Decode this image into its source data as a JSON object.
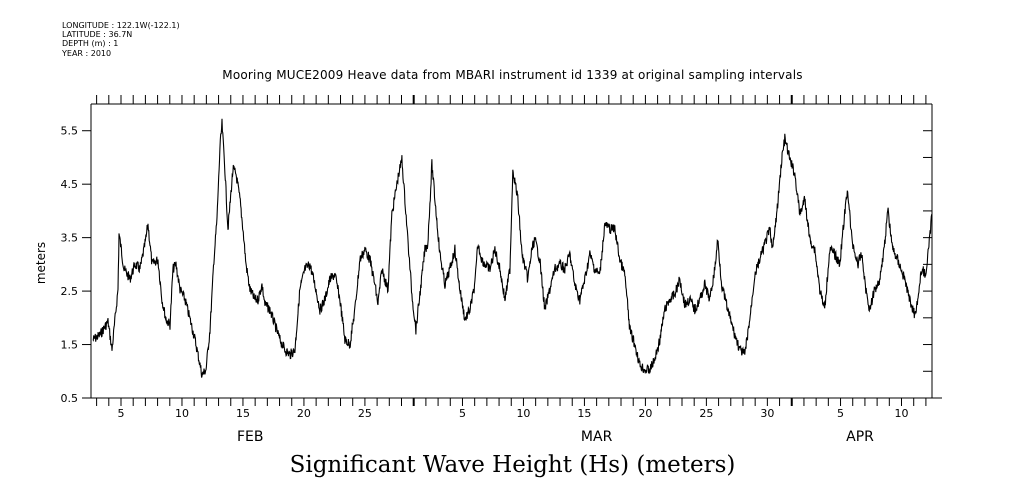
{
  "header": {
    "meta_lines": [
      "LONGITUDE : 122.1W(-122.1)",
      "LATITUDE : 36.7N",
      "DEPTH (m) : 1",
      "YEAR : 2010"
    ]
  },
  "chart_data": {
    "type": "line",
    "title": "Mooring MUCE2009 Heave data from MBARI instrument id 1339 at original sampling intervals",
    "bottom_title": "Significant Wave Height (Hs) (meters)",
    "xlabel": "",
    "ylabel": "meters",
    "x_units": "day index (Feb 1 = 1, Mar 1 = 29, Apr 1 = 60), year 2010",
    "xlim": [
      2.54,
      71.5
    ],
    "ylim": [
      0.5,
      6.0
    ],
    "yticks": [
      0.5,
      1.5,
      2.5,
      3.5,
      4.5,
      5.5
    ],
    "ytick_labels": [
      "0.5",
      "1.5",
      "2.5",
      "3.5",
      "4.5",
      "5.5"
    ],
    "xtick_labels": [
      {
        "day": 5,
        "label": "5"
      },
      {
        "day": 10,
        "label": "10"
      },
      {
        "day": 15,
        "label": "15"
      },
      {
        "day": 20,
        "label": "20"
      },
      {
        "day": 25,
        "label": "25"
      },
      {
        "day": 33,
        "label": "5"
      },
      {
        "day": 38,
        "label": "10"
      },
      {
        "day": 43,
        "label": "15"
      },
      {
        "day": 48,
        "label": "20"
      },
      {
        "day": 53,
        "label": "25"
      },
      {
        "day": 58,
        "label": "30"
      },
      {
        "day": 64,
        "label": "5"
      },
      {
        "day": 69,
        "label": "10"
      }
    ],
    "month_labels": [
      {
        "center_day": 15.6,
        "label": "FEB"
      },
      {
        "center_day": 44.0,
        "label": "MAR"
      },
      {
        "center_day": 65.6,
        "label": "APR"
      }
    ],
    "month_starts": [
      29,
      60
    ],
    "grid": false,
    "series": [
      {
        "name": "Hs",
        "color": "#000000",
        "x": [
          2.7,
          3.28,
          3.93,
          4.26,
          4.75,
          4.84,
          5.25,
          5.74,
          6.15,
          6.56,
          6.97,
          7.21,
          7.54,
          8.03,
          8.36,
          8.69,
          9.02,
          9.26,
          9.51,
          9.84,
          10.25,
          10.66,
          11.07,
          11.48,
          11.64,
          11.97,
          12.3,
          12.62,
          12.87,
          13.11,
          13.28,
          13.52,
          13.77,
          14.18,
          14.43,
          14.75,
          15.0,
          15.25,
          15.57,
          15.98,
          16.23,
          16.56,
          16.8,
          17.21,
          17.62,
          18.03,
          18.44,
          18.85,
          19.26,
          19.67,
          20.08,
          20.49,
          20.9,
          21.31,
          21.72,
          22.13,
          22.54,
          22.95,
          23.36,
          23.77,
          24.18,
          24.59,
          25.0,
          25.41,
          25.82,
          26.07,
          26.39,
          26.89,
          27.21,
          27.7,
          28.03,
          28.28,
          28.52,
          28.85,
          29.18,
          29.51,
          29.92,
          30.16,
          30.49,
          30.74,
          31.15,
          31.56,
          31.97,
          32.38,
          32.79,
          33.2,
          33.61,
          34.02,
          34.26,
          34.59,
          34.84,
          35.25,
          35.66,
          36.07,
          36.48,
          36.89,
          37.13,
          37.54,
          37.87,
          38.36,
          38.69,
          38.93,
          39.34,
          39.75,
          40.16,
          40.57,
          40.98,
          41.39,
          41.8,
          42.21,
          42.62,
          43.03,
          43.44,
          43.85,
          44.26,
          44.67,
          45.08,
          45.49,
          45.9,
          46.31,
          46.72,
          47.13,
          47.54,
          47.95,
          48.36,
          48.77,
          49.18,
          49.59,
          50.0,
          50.41,
          50.82,
          51.23,
          51.64,
          52.05,
          52.46,
          52.87,
          53.28,
          53.69,
          53.93,
          54.26,
          54.75,
          55.33,
          55.74,
          56.15,
          56.56,
          56.97,
          57.38,
          57.79,
          58.2,
          58.44,
          58.85,
          59.18,
          59.43,
          59.84,
          60.25,
          60.66,
          61.07,
          61.48,
          61.89,
          62.3,
          62.7,
          63.11,
          63.52,
          63.93,
          64.34,
          64.59,
          64.92,
          65.41,
          65.74,
          66.07,
          66.39,
          66.8,
          67.21,
          67.62,
          67.87,
          68.28,
          68.69,
          69.26,
          69.67,
          70.08,
          70.33,
          70.66,
          70.98,
          71.31,
          71.48
        ],
        "y": [
          1.59,
          1.68,
          1.93,
          1.4,
          2.53,
          3.57,
          2.91,
          2.73,
          3.0,
          2.91,
          3.38,
          3.75,
          3.0,
          3.09,
          2.34,
          1.97,
          1.87,
          2.91,
          3.0,
          2.53,
          2.34,
          1.97,
          1.59,
          1.12,
          0.93,
          1.03,
          1.78,
          3.09,
          3.84,
          5.16,
          5.63,
          4.78,
          3.66,
          4.78,
          4.69,
          4.22,
          3.66,
          3.0,
          2.53,
          2.34,
          2.34,
          2.62,
          2.25,
          2.15,
          1.87,
          1.59,
          1.4,
          1.31,
          1.4,
          2.53,
          2.91,
          3.0,
          2.62,
          2.15,
          2.34,
          2.72,
          2.81,
          2.34,
          1.59,
          1.5,
          2.15,
          3.09,
          3.28,
          3.09,
          2.62,
          2.25,
          2.91,
          2.53,
          3.94,
          4.6,
          4.97,
          4.22,
          3.47,
          2.44,
          1.78,
          2.44,
          3.28,
          3.38,
          4.88,
          4.22,
          3.19,
          2.62,
          2.91,
          3.28,
          2.53,
          1.97,
          2.15,
          2.62,
          3.38,
          3.09,
          3.0,
          2.91,
          3.28,
          2.91,
          2.34,
          2.91,
          4.78,
          4.22,
          3.19,
          2.72,
          3.28,
          3.47,
          3.09,
          2.15,
          2.53,
          2.91,
          3.0,
          2.91,
          3.19,
          2.62,
          2.34,
          2.72,
          3.19,
          2.91,
          2.81,
          3.75,
          3.66,
          3.66,
          3.09,
          2.81,
          1.78,
          1.5,
          1.12,
          1.03,
          1.03,
          1.22,
          1.59,
          2.15,
          2.34,
          2.44,
          2.72,
          2.25,
          2.34,
          2.15,
          2.34,
          2.62,
          2.34,
          2.91,
          3.47,
          2.62,
          2.15,
          1.68,
          1.4,
          1.31,
          1.97,
          2.81,
          3.09,
          3.38,
          3.66,
          3.28,
          4.12,
          4.97,
          5.35,
          4.97,
          4.69,
          3.94,
          4.22,
          3.47,
          3.28,
          2.53,
          2.15,
          3.28,
          3.19,
          3.0,
          3.94,
          4.41,
          3.47,
          3.0,
          3.19,
          2.53,
          2.15,
          2.53,
          2.72,
          3.38,
          4.03,
          3.28,
          3.09,
          2.72,
          2.34,
          2.06,
          2.34,
          2.91,
          2.81,
          3.47,
          3.94
        ]
      }
    ]
  }
}
